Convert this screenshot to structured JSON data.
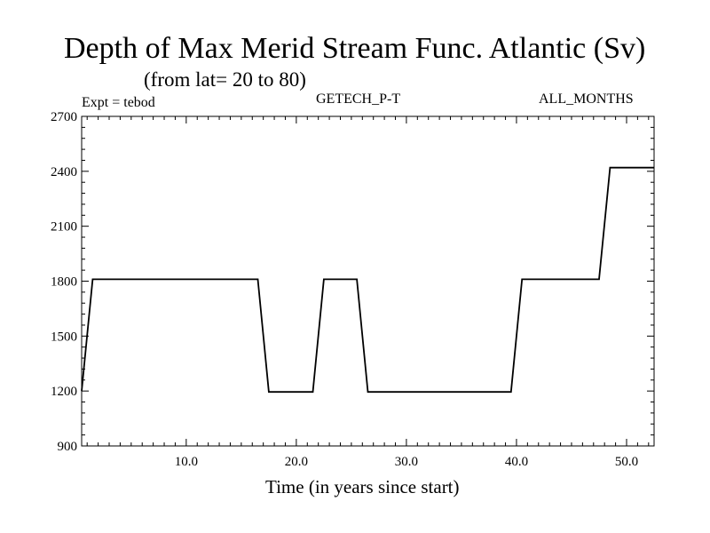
{
  "chart_data": {
    "type": "line",
    "title": "Depth of Max Merid Stream Func. Atlantic (Sv)",
    "subtitle": "(from lat= 20 to 80)",
    "labels": {
      "left": "Expt = tebod",
      "center": "GETECH_P-T",
      "right": "ALL_MONTHS"
    },
    "xlabel": "Time (in years since start)",
    "ylabel": "",
    "xlim": [
      0.5,
      52.5
    ],
    "ylim": [
      900,
      2700
    ],
    "xticks": [
      10,
      20,
      30,
      40,
      50
    ],
    "xtick_labels": [
      "10.0",
      "20.0",
      "30.0",
      "40.0",
      "50.0"
    ],
    "yticks": [
      900,
      1200,
      1500,
      1800,
      2100,
      2400,
      2700
    ],
    "ytick_labels": [
      "900",
      "1200",
      "1500",
      "1800",
      "2100",
      "2400",
      "2700"
    ],
    "series": [
      {
        "color": "#000000",
        "x": [
          0.5,
          1.5,
          16.5,
          17.5,
          21.5,
          22.5,
          25.5,
          26.5,
          39.5,
          40.5,
          47.5,
          48.5,
          52.5
        ],
        "y": [
          1200,
          1810,
          1810,
          1195,
          1195,
          1810,
          1810,
          1195,
          1195,
          1810,
          1810,
          2420,
          2420
        ]
      }
    ]
  }
}
